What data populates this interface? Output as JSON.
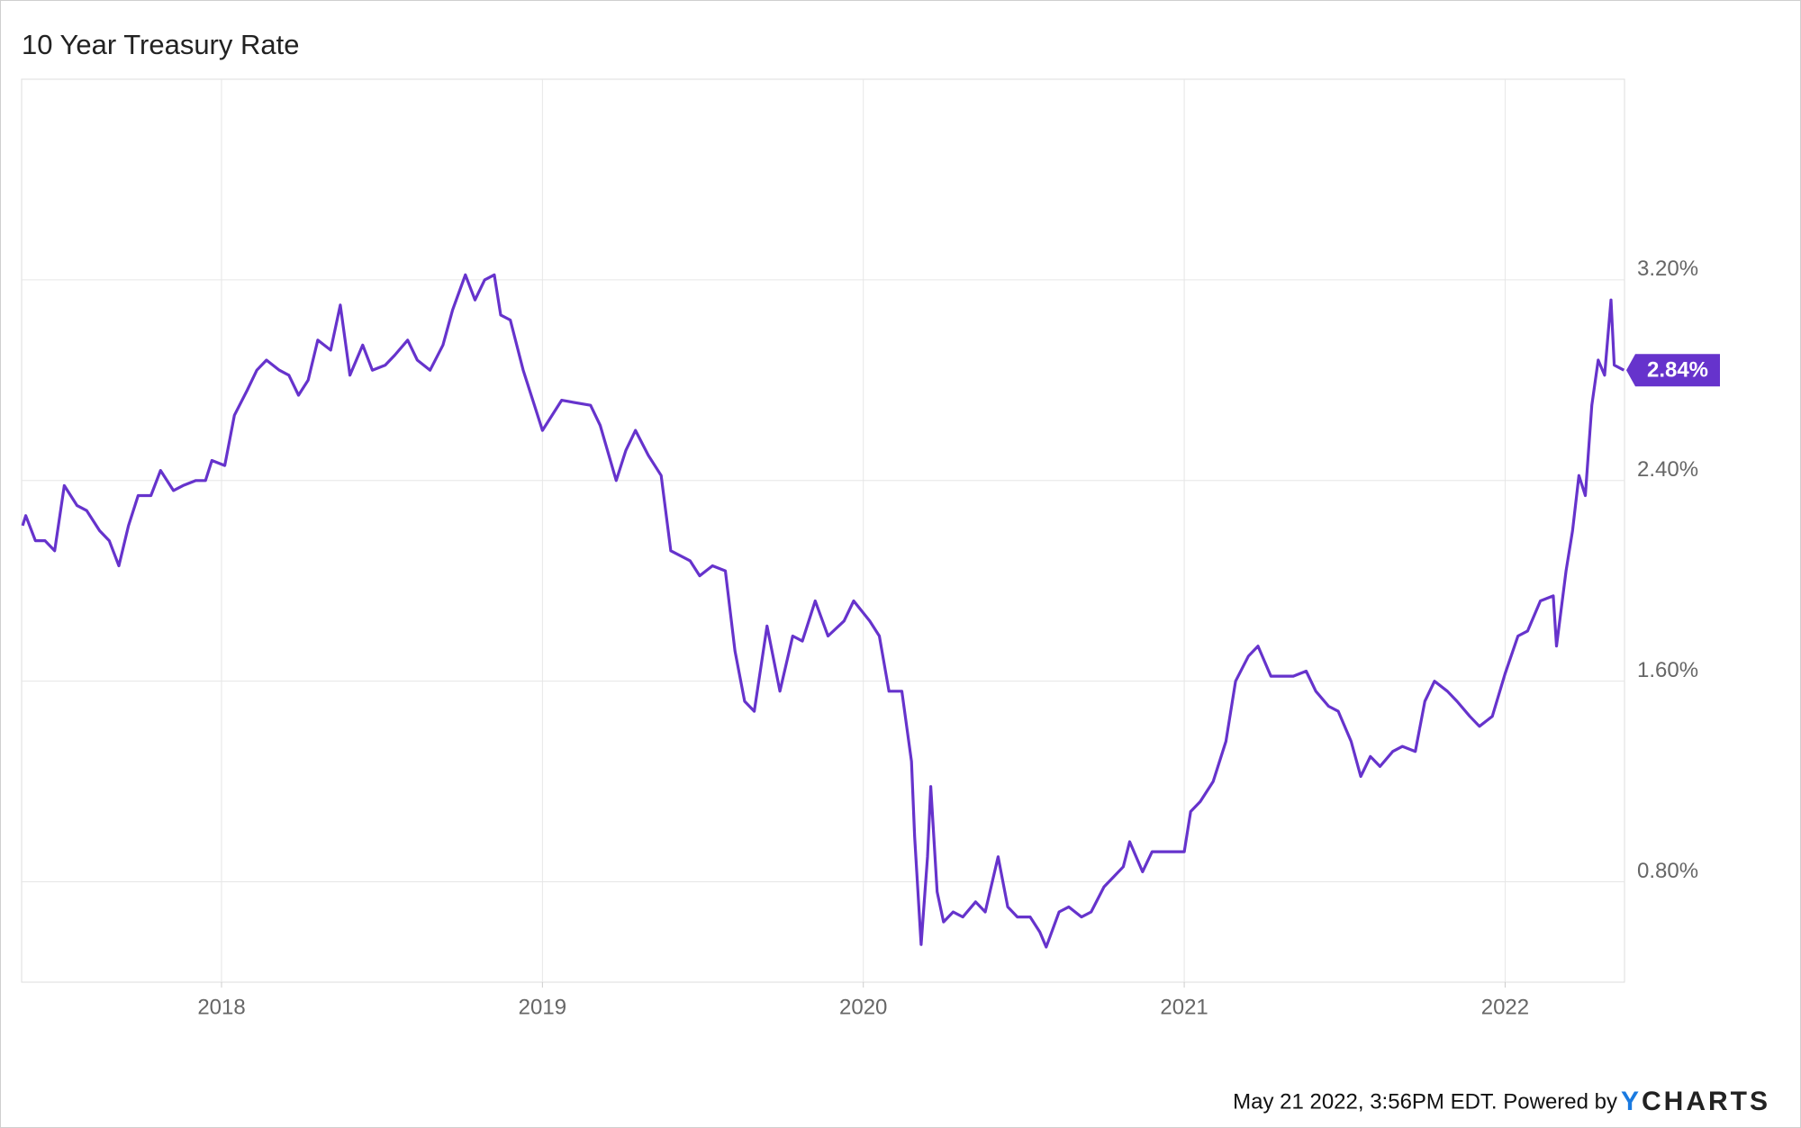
{
  "chart_data": {
    "type": "line",
    "title": "10 Year Treasury Rate",
    "x": [
      2017.38,
      2017.39,
      2017.42,
      2017.45,
      2017.48,
      2017.51,
      2017.55,
      2017.58,
      2017.62,
      2017.65,
      2017.68,
      2017.71,
      2017.74,
      2017.78,
      2017.81,
      2017.85,
      2017.88,
      2017.92,
      2017.95,
      2017.97,
      2018.01,
      2018.04,
      2018.08,
      2018.11,
      2018.14,
      2018.18,
      2018.21,
      2018.24,
      2018.27,
      2018.3,
      2018.34,
      2018.37,
      2018.4,
      2018.44,
      2018.47,
      2018.51,
      2018.54,
      2018.58,
      2018.61,
      2018.65,
      2018.69,
      2018.72,
      2018.76,
      2018.79,
      2018.82,
      2018.85,
      2018.87,
      2018.9,
      2018.94,
      2018.97,
      2019.0,
      2019.06,
      2019.15,
      2019.18,
      2019.23,
      2019.26,
      2019.29,
      2019.33,
      2019.37,
      2019.4,
      2019.46,
      2019.49,
      2019.53,
      2019.57,
      2019.6,
      2019.63,
      2019.66,
      2019.7,
      2019.74,
      2019.78,
      2019.81,
      2019.85,
      2019.89,
      2019.94,
      2019.97,
      2020.02,
      2020.05,
      2020.08,
      2020.12,
      2020.15,
      2020.16,
      2020.18,
      2020.2,
      2020.21,
      2020.23,
      2020.25,
      2020.28,
      2020.31,
      2020.35,
      2020.38,
      2020.42,
      2020.45,
      2020.48,
      2020.52,
      2020.55,
      2020.57,
      2020.61,
      2020.64,
      2020.68,
      2020.71,
      2020.75,
      2020.78,
      2020.81,
      2020.83,
      2020.87,
      2020.9,
      2020.94,
      2021.0,
      2021.02,
      2021.05,
      2021.09,
      2021.13,
      2021.16,
      2021.2,
      2021.23,
      2021.27,
      2021.3,
      2021.34,
      2021.38,
      2021.41,
      2021.45,
      2021.48,
      2021.52,
      2021.55,
      2021.58,
      2021.61,
      2021.65,
      2021.68,
      2021.72,
      2021.75,
      2021.78,
      2021.82,
      2021.85,
      2021.89,
      2021.92,
      2021.96,
      2022.0,
      2022.04,
      2022.07,
      2022.11,
      2022.15,
      2022.16,
      2022.19,
      2022.21,
      2022.23,
      2022.25,
      2022.27,
      2022.29,
      2022.31,
      2022.33,
      2022.34,
      2022.37
    ],
    "series": [
      {
        "name": "10 Year Treasury Rate",
        "color": "#6633cc",
        "values": [
          2.22,
          2.26,
          2.16,
          2.16,
          2.12,
          2.38,
          2.3,
          2.28,
          2.2,
          2.16,
          2.06,
          2.22,
          2.34,
          2.34,
          2.44,
          2.36,
          2.38,
          2.4,
          2.4,
          2.48,
          2.46,
          2.66,
          2.76,
          2.84,
          2.88,
          2.84,
          2.82,
          2.74,
          2.8,
          2.96,
          2.92,
          3.1,
          2.82,
          2.94,
          2.84,
          2.86,
          2.9,
          2.96,
          2.88,
          2.84,
          2.94,
          3.08,
          3.22,
          3.12,
          3.2,
          3.22,
          3.06,
          3.04,
          2.84,
          2.72,
          2.6,
          2.72,
          2.7,
          2.62,
          2.4,
          2.52,
          2.6,
          2.5,
          2.42,
          2.12,
          2.08,
          2.02,
          2.06,
          2.04,
          1.72,
          1.52,
          1.48,
          1.82,
          1.56,
          1.78,
          1.76,
          1.92,
          1.78,
          1.84,
          1.92,
          1.84,
          1.78,
          1.56,
          1.56,
          1.28,
          0.98,
          0.55,
          0.9,
          1.18,
          0.76,
          0.64,
          0.68,
          0.66,
          0.72,
          0.68,
          0.9,
          0.7,
          0.66,
          0.66,
          0.6,
          0.54,
          0.68,
          0.7,
          0.66,
          0.68,
          0.78,
          0.82,
          0.86,
          0.96,
          0.84,
          0.92,
          0.92,
          0.92,
          1.08,
          1.12,
          1.2,
          1.36,
          1.6,
          1.7,
          1.74,
          1.62,
          1.62,
          1.62,
          1.64,
          1.56,
          1.5,
          1.48,
          1.36,
          1.22,
          1.3,
          1.26,
          1.32,
          1.34,
          1.32,
          1.52,
          1.6,
          1.56,
          1.52,
          1.46,
          1.42,
          1.46,
          1.63,
          1.78,
          1.8,
          1.92,
          1.94,
          1.74,
          2.04,
          2.2,
          2.42,
          2.34,
          2.7,
          2.88,
          2.82,
          3.12,
          2.86,
          2.84
        ]
      }
    ],
    "last_label": {
      "value": 2.84,
      "label": "2.84%"
    },
    "xlim": [
      2017.377,
      2022.372
    ],
    "xticks": [
      2018,
      2019,
      2020,
      2021,
      2022
    ],
    "ylim": [
      0.4,
      4.0
    ],
    "yticks": [
      {
        "value": 0.8,
        "label": "0.80%"
      },
      {
        "value": 1.6,
        "label": "1.60%"
      },
      {
        "value": 2.4,
        "label": "2.40%"
      },
      {
        "value": 3.2,
        "label": "3.20%"
      }
    ],
    "grid": true,
    "source": "May 21 2022, 3:56PM EDT. Powered by",
    "logo": [
      "Y",
      "CHARTS"
    ]
  }
}
